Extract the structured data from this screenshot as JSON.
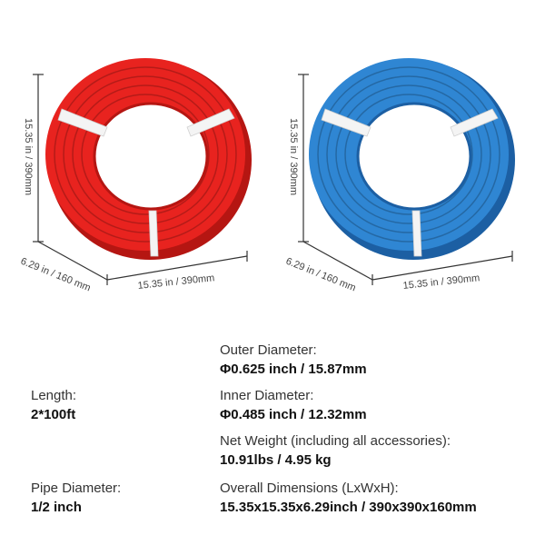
{
  "product": {
    "coils": [
      {
        "color_name": "red",
        "color": "#e8231f",
        "dark": "#b51612",
        "height_label": "15.35 in / 390mm",
        "depth_label": "6.29 in / 160 mm",
        "width_label": "15.35 in / 390mm"
      },
      {
        "color_name": "blue",
        "color": "#2f86d3",
        "dark": "#1c5fa3",
        "height_label": "15.35 in / 390mm",
        "depth_label": "6.29 in / 160 mm",
        "width_label": "15.35 in / 390mm"
      }
    ]
  },
  "specs": {
    "outer_diameter": {
      "label": "Outer Diameter:",
      "value": "Φ0.625 inch / 15.87mm"
    },
    "length": {
      "label": "Length:",
      "value": "2*100ft"
    },
    "inner_diameter": {
      "label": "Inner Diameter:",
      "value": "Φ0.485 inch / 12.32mm"
    },
    "net_weight": {
      "label": "Net Weight (including all accessories):",
      "value": "10.91lbs / 4.95 kg"
    },
    "pipe_diameter": {
      "label": "Pipe Diameter:",
      "value": "1/2 inch"
    },
    "overall_dimensions": {
      "label": "Overall Dimensions (LxWxH):",
      "value": "15.35x15.35x6.29inch / 390x390x160mm"
    }
  }
}
